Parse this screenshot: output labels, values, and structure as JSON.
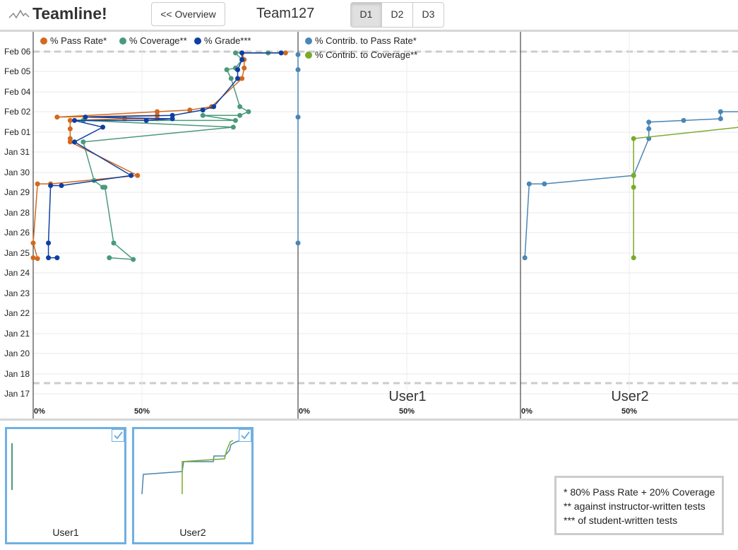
{
  "header": {
    "app_title": "Teamline!",
    "overview_button": "<< Overview",
    "team_name": "Team127",
    "deliverables": [
      "D1",
      "D2",
      "D3"
    ],
    "active_deliverable": "D1"
  },
  "chart_data": [
    {
      "type": "line",
      "title": "",
      "y_axis_dates": [
        "Jan 17",
        "Jan 18",
        "Jan 20",
        "Jan 21",
        "Jan 22",
        "Jan 23",
        "Jan 24",
        "Jan 25",
        "Jan 26",
        "Jan 28",
        "Jan 29",
        "Jan 30",
        "Jan 31",
        "Feb 01",
        "Feb 02",
        "Feb 04",
        "Feb 05",
        "Feb 06"
      ],
      "x_ticks": [
        "0%",
        "50%"
      ],
      "legend": [
        "% Pass Rate*",
        "% Coverage**",
        "% Grade***"
      ],
      "series": [
        {
          "name": "% Pass Rate*",
          "color": "#d2691e",
          "points": [
            [
              0,
              "Jan 24 18:00"
            ],
            [
              2,
              "Jan 24 17:00"
            ],
            [
              0,
              "Jan 25 12:00"
            ],
            [
              2,
              "Jan 29 10:00"
            ],
            [
              8,
              "Jan 29 10:00"
            ],
            [
              48,
              "Jan 29 20:00"
            ],
            [
              17,
              "Jan 31 12:00"
            ],
            [
              17,
              "Jan 31 16:00"
            ],
            [
              17,
              "Feb 01 04:00"
            ],
            [
              17,
              "Feb 01 14:00"
            ],
            [
              42,
              "Feb 01 16:00"
            ],
            [
              57,
              "Feb 01 16:00"
            ],
            [
              57,
              "Feb 01 20:00"
            ],
            [
              11,
              "Feb 01 18:00"
            ],
            [
              57,
              "Feb 02 00:00"
            ],
            [
              72,
              "Feb 02 02:00"
            ],
            [
              82,
              "Feb 02 06:00"
            ],
            [
              96,
              "Feb 04 16:00"
            ],
            [
              97,
              "Feb 05 04:00"
            ],
            [
              97,
              "Feb 05 14:00"
            ],
            [
              96,
              "Feb 05 22:00"
            ],
            [
              116,
              "Feb 05 22:00"
            ]
          ]
        },
        {
          "name": "% Coverage**",
          "color": "#4a9a7a",
          "points": [
            [
              35,
              "Jan 24 18:00"
            ],
            [
              46,
              "Jan 24 16:00"
            ],
            [
              37,
              "Jan 25 12:00"
            ],
            [
              33,
              "Jan 29 06:00"
            ],
            [
              32,
              "Jan 29 06:00"
            ],
            [
              28,
              "Jan 29 14:00"
            ],
            [
              23,
              "Jan 31 12:00"
            ],
            [
              92,
              "Feb 01 06:00"
            ],
            [
              23,
              "Feb 01 14:00"
            ],
            [
              93,
              "Feb 01 14:00"
            ],
            [
              78,
              "Feb 01 20:00"
            ],
            [
              95,
              "Feb 01 20:00"
            ],
            [
              99,
              "Feb 02 00:00"
            ],
            [
              95,
              "Feb 02 06:00"
            ],
            [
              91,
              "Feb 04 16:00"
            ],
            [
              89,
              "Feb 05 02:00"
            ],
            [
              93,
              "Feb 05 04:00"
            ],
            [
              96,
              "Feb 05 14:00"
            ],
            [
              93,
              "Feb 05 22:00"
            ],
            [
              108,
              "Feb 05 22:00"
            ]
          ]
        },
        {
          "name": "% Grade***",
          "color": "#0d3fa3",
          "points": [
            [
              11,
              "Jan 24 18:00"
            ],
            [
              7,
              "Jan 24 18:00"
            ],
            [
              7,
              "Jan 25 12:00"
            ],
            [
              8,
              "Jan 29 08:00"
            ],
            [
              13,
              "Jan 29 08:00"
            ],
            [
              45,
              "Jan 29 20:00"
            ],
            [
              19,
              "Jan 31 12:00"
            ],
            [
              32,
              "Feb 01 06:00"
            ],
            [
              19,
              "Feb 01 14:00"
            ],
            [
              52,
              "Feb 01 14:00"
            ],
            [
              64,
              "Feb 01 16:00"
            ],
            [
              24,
              "Feb 01 18:00"
            ],
            [
              64,
              "Feb 01 20:00"
            ],
            [
              78,
              "Feb 02 02:00"
            ],
            [
              83,
              "Feb 02 06:00"
            ],
            [
              94,
              "Feb 04 16:00"
            ],
            [
              94,
              "Feb 05 02:00"
            ],
            [
              96,
              "Feb 05 14:00"
            ],
            [
              96,
              "Feb 05 22:00"
            ],
            [
              114,
              "Feb 05 22:00"
            ]
          ]
        }
      ]
    },
    {
      "type": "line",
      "title": "User1",
      "x_ticks": [
        "0%",
        "50%"
      ],
      "legend": [
        "% Contrib. to Pass Rate*",
        "% Contrib. to Coverage**"
      ],
      "series": [
        {
          "name": "% Contrib. to Pass Rate*",
          "color": "#4a86b5",
          "points": [
            [
              0,
              "Jan 25 12:00"
            ],
            [
              0,
              "Feb 01 18:00"
            ],
            [
              0,
              "Feb 05 02:00"
            ],
            [
              0,
              "Feb 05 20:00"
            ]
          ]
        }
      ]
    },
    {
      "type": "line",
      "title": "User2",
      "x_ticks": [
        "0%",
        "50%"
      ],
      "series": [
        {
          "name": "% Contrib. to Pass Rate*",
          "color": "#4a86b5",
          "points": [
            [
              2,
              "Jan 24 18:00"
            ],
            [
              4,
              "Jan 29 10:00"
            ],
            [
              11,
              "Jan 29 10:00"
            ],
            [
              52,
              "Jan 29 20:00"
            ],
            [
              52,
              "Jan 29 20:00"
            ],
            [
              59,
              "Jan 31 16:00"
            ],
            [
              59,
              "Feb 01 04:00"
            ],
            [
              59,
              "Feb 01 12:00"
            ],
            [
              75,
              "Feb 01 14:00"
            ],
            [
              92,
              "Feb 01 16:00"
            ],
            [
              92,
              "Feb 02 00:00"
            ],
            [
              107,
              "Feb 02 00:00"
            ],
            [
              108,
              "Feb 02 08:00"
            ],
            [
              110,
              "Feb 04 16:00"
            ],
            [
              111,
              "Feb 05 04:00"
            ],
            [
              111,
              "Feb 05 14:00"
            ],
            [
              114,
              "Feb 05 22:00"
            ],
            [
              120,
              "Feb 05 22:00"
            ]
          ]
        },
        {
          "name": "% Contrib. to Coverage**",
          "color": "#7aab2a",
          "points": [
            [
              52,
              "Jan 24 18:00"
            ],
            [
              52,
              "Jan 29 06:00"
            ],
            [
              52,
              "Jan 29 20:00"
            ],
            [
              52,
              "Jan 31 16:00"
            ],
            [
              101,
              "Feb 01 06:00"
            ],
            [
              101,
              "Feb 01 14:00"
            ],
            [
              104,
              "Feb 01 16:00"
            ],
            [
              107,
              "Feb 02 00:00"
            ],
            [
              109,
              "Feb 02 06:00"
            ],
            [
              110,
              "Feb 04 16:00"
            ],
            [
              110,
              "Feb 05 04:00"
            ],
            [
              110,
              "Feb 05 14:00"
            ],
            [
              110,
              "Feb 05 22:00"
            ]
          ]
        }
      ]
    }
  ],
  "thumbnails": [
    {
      "label": "User1"
    },
    {
      "label": "User2"
    }
  ],
  "footnotes": [
    "* 80% Pass Rate + 20% Coverage",
    "** against instructor-written tests",
    "*** of student-written tests"
  ]
}
